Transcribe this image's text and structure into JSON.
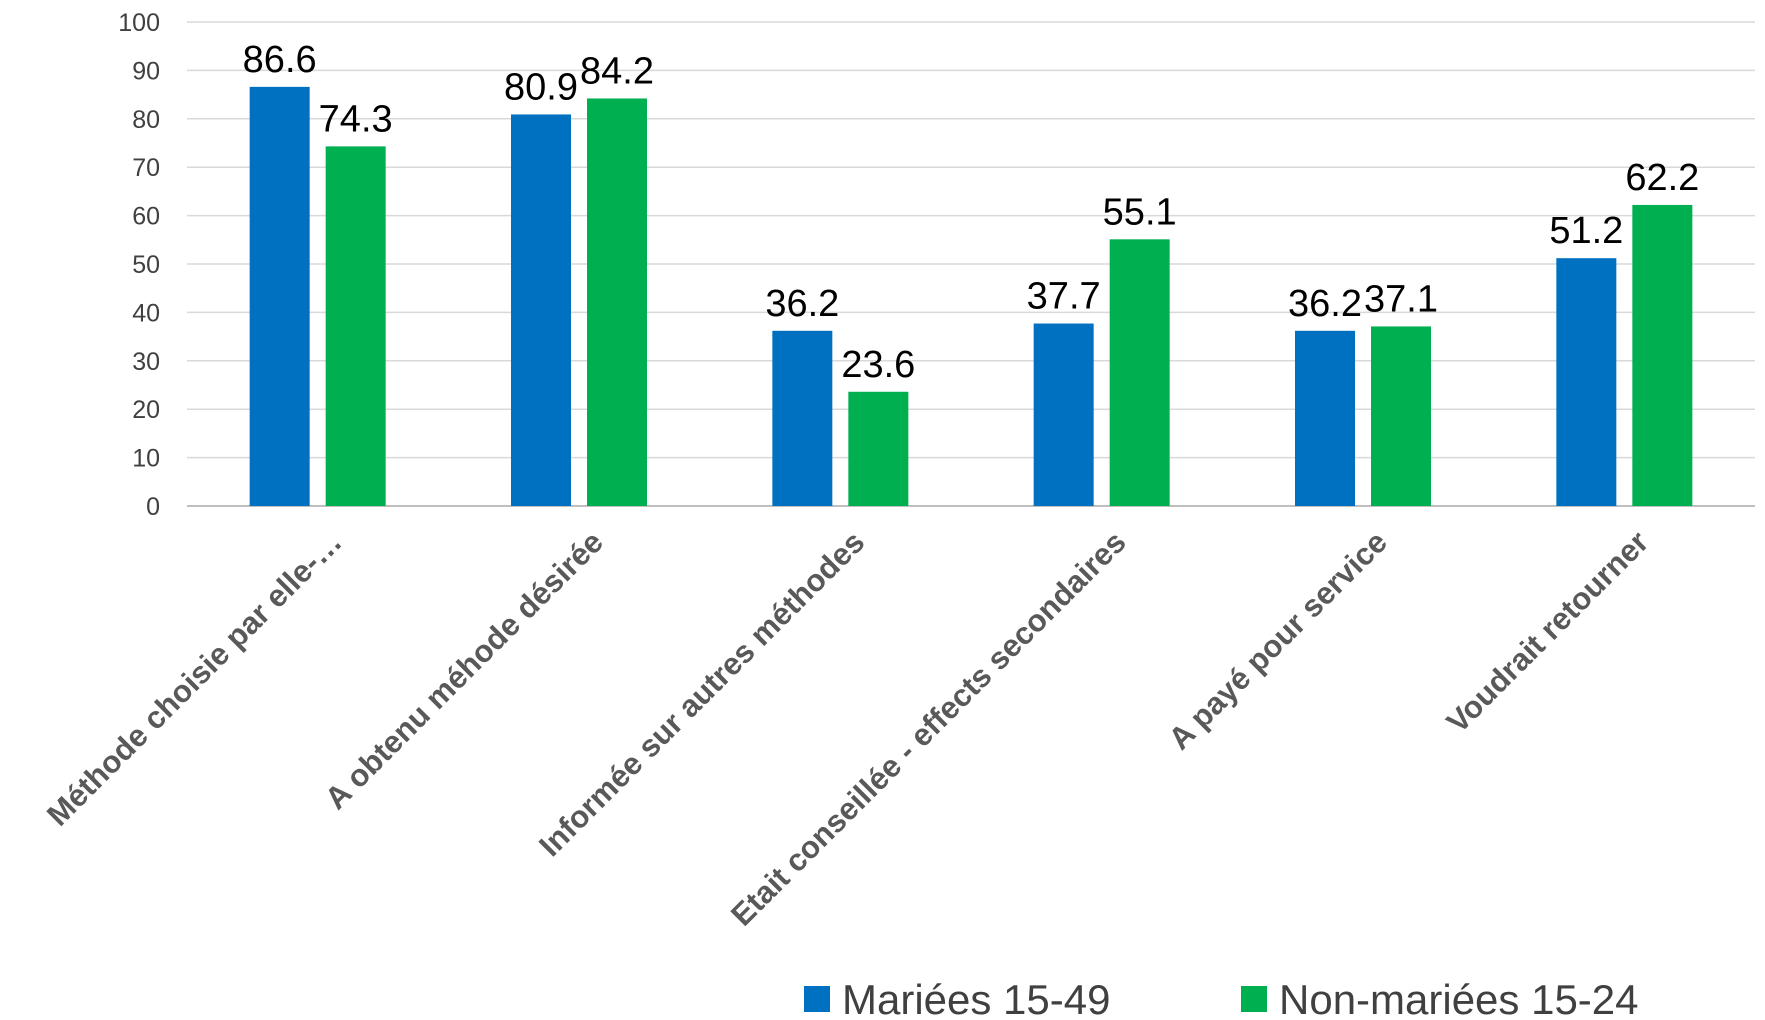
{
  "chart_data": {
    "type": "bar",
    "title": "",
    "xlabel": "",
    "ylabel": "",
    "ylim": [
      0,
      100
    ],
    "yticks": [
      0,
      10,
      20,
      30,
      40,
      50,
      60,
      70,
      80,
      90,
      100
    ],
    "grid": true,
    "legend_position": "bottom-right",
    "categories": [
      "Méthode choisie par elle-…",
      "A obtenu méhode désirée",
      "Informée sur autres méthodes",
      "Etait conseillée - effects secondaires",
      "A payé pour service",
      "Voudrait retourner"
    ],
    "series": [
      {
        "name": "Mariées 15-49",
        "color": "#0070c0",
        "values": [
          86.6,
          80.9,
          36.2,
          37.7,
          36.2,
          51.2
        ]
      },
      {
        "name": "Non-mariées 15-24",
        "color": "#00b050",
        "values": [
          74.3,
          84.2,
          23.6,
          55.1,
          37.1,
          62.2
        ]
      }
    ]
  }
}
